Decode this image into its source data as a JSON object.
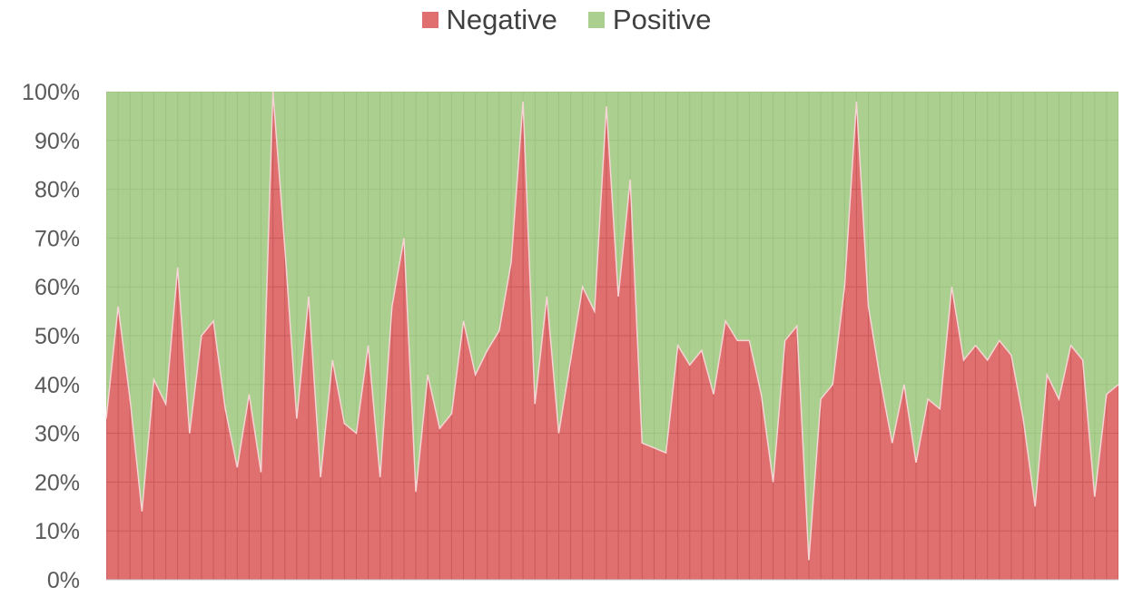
{
  "legend": {
    "negative": "Negative",
    "positive": "Positive"
  },
  "colors": {
    "negative": "#e07070",
    "positive": "#abcf8f",
    "negative_grid": "#c95a5a",
    "positive_grid": "#9cc281",
    "boundary": "#f4d4d4"
  },
  "chart_data": {
    "type": "area",
    "stacked": "percent",
    "ylim": [
      0,
      100
    ],
    "y_ticks": [
      "0%",
      "10%",
      "20%",
      "30%",
      "40%",
      "50%",
      "60%",
      "70%",
      "80%",
      "90%",
      "100%"
    ],
    "grid": true,
    "legend_position": "top",
    "series": [
      {
        "name": "Negative",
        "values": [
          33,
          56,
          37,
          14,
          41,
          36,
          64,
          30,
          50,
          53,
          35,
          23,
          38,
          22,
          100,
          68,
          33,
          58,
          21,
          45,
          32,
          30,
          48,
          21,
          56,
          70,
          18,
          42,
          31,
          34,
          53,
          42,
          47,
          51,
          65,
          98,
          36,
          58,
          30,
          45,
          60,
          55,
          97,
          58,
          82,
          28,
          27,
          26,
          48,
          44,
          47,
          38,
          53,
          49,
          49,
          38,
          20,
          49,
          52,
          4,
          37,
          40,
          60,
          98,
          56,
          41,
          28,
          40,
          24,
          37,
          35,
          60,
          45,
          48,
          45,
          49,
          46,
          33,
          15,
          42,
          37,
          48,
          45,
          17,
          38,
          40
        ]
      },
      {
        "name": "Positive",
        "values": [
          67,
          44,
          63,
          86,
          59,
          64,
          36,
          70,
          50,
          47,
          65,
          77,
          62,
          78,
          0,
          32,
          67,
          42,
          79,
          55,
          68,
          70,
          52,
          79,
          44,
          30,
          82,
          58,
          69,
          66,
          47,
          58,
          53,
          49,
          35,
          2,
          64,
          42,
          70,
          55,
          40,
          45,
          3,
          42,
          18,
          72,
          73,
          74,
          52,
          56,
          53,
          62,
          47,
          51,
          51,
          62,
          80,
          51,
          48,
          96,
          63,
          60,
          40,
          2,
          44,
          59,
          72,
          60,
          76,
          63,
          65,
          40,
          55,
          52,
          55,
          51,
          54,
          67,
          85,
          58,
          63,
          52,
          55,
          83,
          62,
          60
        ]
      }
    ]
  }
}
